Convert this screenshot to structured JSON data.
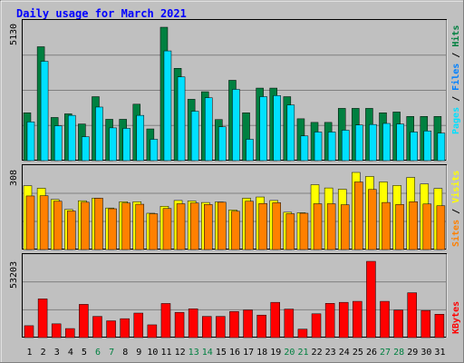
{
  "title": "Daily usage for March 2021",
  "colors": {
    "background": "#C0C0C0",
    "plot_background": "#C0C0C0",
    "title": "#0000FF",
    "hits": "#008040",
    "files": "#00E0FF",
    "pages": "#0080FF",
    "visits": "#FFFF00",
    "sites": "#FF8000",
    "kbytes": "#FF0000",
    "weekday_label": "#000000",
    "weekend_label": "#008040"
  },
  "chart_data": [
    {
      "type": "bar",
      "panel": "hits_files_pages",
      "title": "Daily usage for March 2021",
      "ylabel": [
        "Pages",
        "Files",
        "Hits"
      ],
      "ymax_label": "5130",
      "ylim": [
        0,
        5130
      ],
      "categories": [
        "1",
        "2",
        "3",
        "4",
        "5",
        "6",
        "7",
        "8",
        "9",
        "10",
        "11",
        "12",
        "13",
        "14",
        "15",
        "16",
        "17",
        "18",
        "19",
        "20",
        "21",
        "22",
        "23",
        "24",
        "25",
        "26",
        "27",
        "28",
        "29",
        "30",
        "31"
      ],
      "series": [
        {
          "name": "Hits",
          "values": [
            1840,
            4380,
            1660,
            1800,
            1410,
            2460,
            1590,
            1590,
            2170,
            1220,
            5130,
            3550,
            2360,
            2650,
            1580,
            3090,
            1840,
            2790,
            2790,
            2460,
            1610,
            1470,
            1470,
            2010,
            2010,
            2010,
            1840,
            1870,
            1700,
            1700,
            1700
          ]
        },
        {
          "name": "Files",
          "values": [
            1490,
            3820,
            1340,
            1740,
            920,
            2060,
            1260,
            1240,
            1740,
            820,
            4220,
            3220,
            1900,
            2420,
            1300,
            2740,
            820,
            2460,
            2500,
            2140,
            950,
            1100,
            1100,
            1170,
            1370,
            1390,
            1430,
            1410,
            1100,
            1140,
            1060
          ]
        },
        {
          "name": "Pages",
          "values": [
            0,
            0,
            0,
            0,
            0,
            0,
            0,
            0,
            0,
            0,
            0,
            0,
            0,
            0,
            0,
            0,
            0,
            0,
            0,
            0,
            0,
            0,
            0,
            0,
            0,
            0,
            0,
            0,
            0,
            0,
            0
          ]
        }
      ]
    },
    {
      "type": "bar",
      "panel": "visits_sites",
      "ylabel": [
        "Sites",
        "Visits"
      ],
      "ymax_label": "308",
      "ylim": [
        0,
        308
      ],
      "categories": [
        "1",
        "2",
        "3",
        "4",
        "5",
        "6",
        "7",
        "8",
        "9",
        "10",
        "11",
        "12",
        "13",
        "14",
        "15",
        "16",
        "17",
        "18",
        "19",
        "20",
        "21",
        "22",
        "23",
        "24",
        "25",
        "26",
        "27",
        "28",
        "29",
        "30",
        "31"
      ],
      "series": [
        {
          "name": "Visits",
          "values": [
            255,
            245,
            200,
            160,
            195,
            205,
            166,
            191,
            191,
            145,
            173,
            196,
            194,
            188,
            190,
            158,
            205,
            210,
            196,
            149,
            147,
            259,
            246,
            241,
            308,
            292,
            270,
            256,
            288,
            262,
            244
          ]
        },
        {
          "name": "Sites",
          "values": [
            214,
            215,
            193,
            154,
            189,
            205,
            163,
            186,
            181,
            143,
            164,
            183,
            186,
            180,
            189,
            153,
            193,
            184,
            187,
            143,
            145,
            183,
            183,
            179,
            270,
            240,
            188,
            180,
            191,
            182,
            175
          ]
        }
      ]
    },
    {
      "type": "bar",
      "panel": "kbytes",
      "ylabel": [
        "KBytes"
      ],
      "ymax_label": "53203",
      "ylim": [
        0,
        53203
      ],
      "categories": [
        "1",
        "2",
        "3",
        "4",
        "5",
        "6",
        "7",
        "8",
        "9",
        "10",
        "11",
        "12",
        "13",
        "14",
        "15",
        "16",
        "17",
        "18",
        "19",
        "20",
        "21",
        "22",
        "23",
        "24",
        "25",
        "26",
        "27",
        "28",
        "29",
        "30",
        "31"
      ],
      "series": [
        {
          "name": "KBytes",
          "values": [
            8300,
            27000,
            9600,
            6300,
            23200,
            14800,
            11700,
            13200,
            17100,
            8900,
            23800,
            17600,
            20100,
            14800,
            14800,
            18200,
            19300,
            15700,
            24600,
            19900,
            5900,
            16600,
            23900,
            24600,
            25300,
            53203,
            25300,
            19200,
            31300,
            18900,
            16300
          ]
        }
      ]
    }
  ],
  "x_axis": {
    "labels": [
      "1",
      "2",
      "3",
      "4",
      "5",
      "6",
      "7",
      "8",
      "9",
      "10",
      "11",
      "12",
      "13",
      "14",
      "15",
      "16",
      "17",
      "18",
      "19",
      "20",
      "21",
      "22",
      "23",
      "24",
      "25",
      "26",
      "27",
      "28",
      "29",
      "30",
      "31"
    ],
    "weekend": [
      6,
      7,
      13,
      14,
      20,
      21,
      27,
      28
    ]
  }
}
